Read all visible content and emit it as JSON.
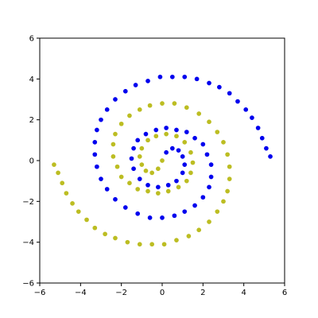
{
  "chart_data": {
    "type": "scatter",
    "title": "",
    "xlabel": "",
    "ylabel": "",
    "xlim": [
      -6,
      6
    ],
    "ylim": [
      -6,
      6
    ],
    "xticks": [
      -6,
      -4,
      -2,
      0,
      2,
      4,
      6
    ],
    "yticks": [
      -6,
      -4,
      -2,
      0,
      2,
      4,
      6
    ],
    "xtick_labels": [
      "−6",
      "−4",
      "−2",
      "0",
      "2",
      "4",
      "6"
    ],
    "ytick_labels": [
      "−6",
      "−4",
      "−2",
      "0",
      "2",
      "4",
      "6"
    ],
    "grid": false,
    "legend": "none",
    "series": [
      {
        "color": "#0000ee",
        "points": [
          [
            0.0,
            0.0
          ],
          [
            0.2,
            0.4
          ],
          [
            0.5,
            0.6
          ],
          [
            0.8,
            0.5
          ],
          [
            1.0,
            0.2
          ],
          [
            1.1,
            -0.2
          ],
          [
            1.0,
            -0.6
          ],
          [
            0.7,
            -1.0
          ],
          [
            0.3,
            -1.2
          ],
          [
            -0.2,
            -1.3
          ],
          [
            -0.7,
            -1.2
          ],
          [
            -1.1,
            -0.9
          ],
          [
            -1.4,
            -0.4
          ],
          [
            -1.5,
            0.1
          ],
          [
            -1.4,
            0.6
          ],
          [
            -1.2,
            1.0
          ],
          [
            -0.8,
            1.3
          ],
          [
            -0.3,
            1.5
          ],
          [
            0.2,
            1.6
          ],
          [
            0.7,
            1.5
          ],
          [
            1.2,
            1.4
          ],
          [
            1.6,
            1.1
          ],
          [
            2.0,
            0.8
          ],
          [
            2.2,
            0.3
          ],
          [
            2.4,
            -0.2
          ],
          [
            2.4,
            -0.8
          ],
          [
            2.3,
            -1.3
          ],
          [
            2.0,
            -1.8
          ],
          [
            1.6,
            -2.2
          ],
          [
            1.1,
            -2.5
          ],
          [
            0.6,
            -2.7
          ],
          [
            0.0,
            -2.8
          ],
          [
            -0.6,
            -2.8
          ],
          [
            -1.2,
            -2.6
          ],
          [
            -1.8,
            -2.3
          ],
          [
            -2.3,
            -1.9
          ],
          [
            -2.7,
            -1.4
          ],
          [
            -3.0,
            -0.9
          ],
          [
            -3.2,
            -0.3
          ],
          [
            -3.3,
            0.3
          ],
          [
            -3.3,
            0.9
          ],
          [
            -3.2,
            1.5
          ],
          [
            -3.0,
            2.0
          ],
          [
            -2.7,
            2.5
          ],
          [
            -2.3,
            3.0
          ],
          [
            -1.8,
            3.4
          ],
          [
            -1.3,
            3.7
          ],
          [
            -0.7,
            3.9
          ],
          [
            -0.1,
            4.1
          ],
          [
            0.5,
            4.1
          ],
          [
            1.1,
            4.1
          ],
          [
            1.7,
            4.0
          ],
          [
            2.3,
            3.8
          ],
          [
            2.8,
            3.6
          ],
          [
            3.3,
            3.3
          ],
          [
            3.7,
            2.9
          ],
          [
            4.1,
            2.5
          ],
          [
            4.4,
            2.1
          ],
          [
            4.7,
            1.6
          ],
          [
            4.9,
            1.1
          ],
          [
            5.1,
            0.6
          ],
          [
            5.3,
            0.2
          ]
        ]
      },
      {
        "color": "#bcbd22",
        "points": [
          [
            0.0,
            0.0
          ],
          [
            -0.2,
            -0.4
          ],
          [
            -0.5,
            -0.6
          ],
          [
            -0.8,
            -0.5
          ],
          [
            -1.0,
            -0.2
          ],
          [
            -1.1,
            0.2
          ],
          [
            -1.0,
            0.6
          ],
          [
            -0.7,
            1.0
          ],
          [
            -0.3,
            1.2
          ],
          [
            0.2,
            1.3
          ],
          [
            0.7,
            1.2
          ],
          [
            1.1,
            0.9
          ],
          [
            1.4,
            0.4
          ],
          [
            1.5,
            -0.1
          ],
          [
            1.4,
            -0.6
          ],
          [
            1.2,
            -1.0
          ],
          [
            0.8,
            -1.3
          ],
          [
            0.3,
            -1.5
          ],
          [
            -0.2,
            -1.6
          ],
          [
            -0.7,
            -1.5
          ],
          [
            -1.2,
            -1.4
          ],
          [
            -1.6,
            -1.1
          ],
          [
            -2.0,
            -0.8
          ],
          [
            -2.2,
            -0.3
          ],
          [
            -2.4,
            0.2
          ],
          [
            -2.4,
            0.8
          ],
          [
            -2.3,
            1.3
          ],
          [
            -2.0,
            1.8
          ],
          [
            -1.6,
            2.2
          ],
          [
            -1.1,
            2.5
          ],
          [
            -0.6,
            2.7
          ],
          [
            0.0,
            2.8
          ],
          [
            0.6,
            2.8
          ],
          [
            1.2,
            2.6
          ],
          [
            1.8,
            2.3
          ],
          [
            2.3,
            1.9
          ],
          [
            2.7,
            1.4
          ],
          [
            3.0,
            0.9
          ],
          [
            3.2,
            0.3
          ],
          [
            3.3,
            -0.3
          ],
          [
            3.3,
            -0.9
          ],
          [
            3.2,
            -1.5
          ],
          [
            3.0,
            -2.0
          ],
          [
            2.7,
            -2.5
          ],
          [
            2.3,
            -3.0
          ],
          [
            1.8,
            -3.4
          ],
          [
            1.3,
            -3.7
          ],
          [
            0.7,
            -3.9
          ],
          [
            0.1,
            -4.1
          ],
          [
            -0.5,
            -4.1
          ],
          [
            -1.1,
            -4.1
          ],
          [
            -1.7,
            -4.0
          ],
          [
            -2.3,
            -3.8
          ],
          [
            -2.8,
            -3.6
          ],
          [
            -3.3,
            -3.3
          ],
          [
            -3.7,
            -2.9
          ],
          [
            -4.1,
            -2.5
          ],
          [
            -4.4,
            -2.1
          ],
          [
            -4.7,
            -1.6
          ],
          [
            -4.9,
            -1.1
          ],
          [
            -5.1,
            -0.6
          ],
          [
            -5.3,
            -0.2
          ]
        ]
      }
    ]
  }
}
